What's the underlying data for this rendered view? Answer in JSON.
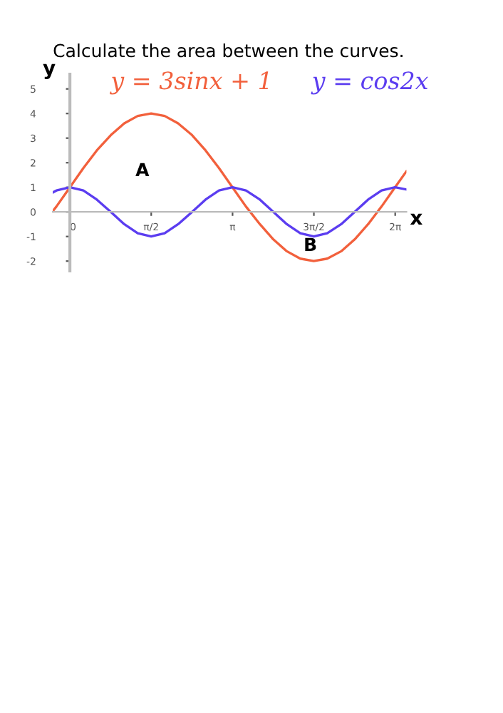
{
  "chart_data": {
    "type": "line",
    "title": "Calculate the area between the curves.",
    "xlabel": "x",
    "ylabel": "y",
    "x": [
      -0.33,
      -0.26,
      0,
      0.26,
      0.52,
      0.79,
      1.05,
      1.31,
      1.57,
      1.83,
      2.09,
      2.36,
      2.62,
      2.88,
      3.14,
      3.4,
      3.67,
      3.93,
      4.19,
      4.45,
      4.71,
      4.97,
      5.24,
      5.5,
      5.76,
      6.02,
      6.28,
      6.5
    ],
    "series": [
      {
        "name": "y = 3sinx + 1",
        "color": "#f2603c",
        "values": [
          0.03,
          0.22,
          1,
          1.78,
          2.5,
          3.12,
          3.6,
          3.9,
          4,
          3.9,
          3.6,
          3.12,
          2.5,
          1.78,
          1,
          0.22,
          -0.5,
          -1.12,
          -1.6,
          -1.9,
          -2,
          -1.9,
          -1.6,
          -1.12,
          -0.5,
          0.22,
          1,
          1.65
        ]
      },
      {
        "name": "y = cos2x",
        "color": "#5b3df0",
        "values": [
          0.79,
          0.87,
          1,
          0.87,
          0.5,
          0,
          -0.5,
          -0.87,
          -1,
          -0.87,
          -0.5,
          0,
          0.5,
          0.87,
          1,
          0.87,
          0.5,
          0,
          -0.5,
          -0.87,
          -1,
          -0.87,
          -0.5,
          0,
          0.5,
          0.87,
          1,
          0.91
        ]
      }
    ],
    "xlim": [
      -0.33,
      6.5
    ],
    "ylim": [
      -2.4,
      5.6
    ],
    "xticks": [
      0,
      {
        "value": 1.5708,
        "label": "π/2"
      },
      {
        "value": 3.1416,
        "label": "π"
      },
      {
        "value": 4.7124,
        "label": "3π/2"
      },
      {
        "value": 6.2832,
        "label": "2π"
      }
    ],
    "yticks": [
      -2,
      -1,
      0,
      1,
      2,
      3,
      4,
      5
    ],
    "annotations": [
      "A",
      "B"
    ],
    "marker": "none",
    "line_style": "solid"
  }
}
